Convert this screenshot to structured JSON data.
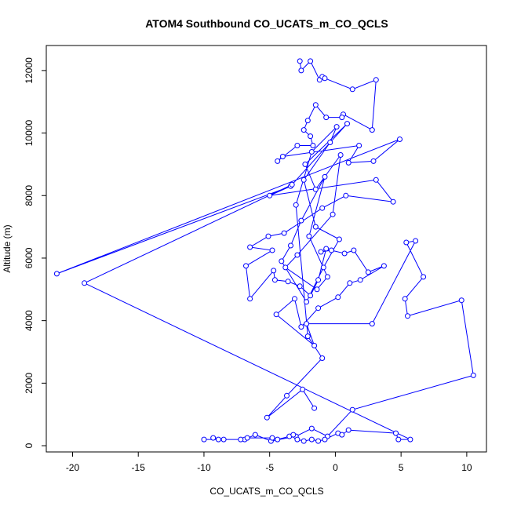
{
  "chart_data": {
    "type": "line",
    "title": "ATOM4 Southbound CO_UCATS_m_CO_QCLS",
    "xlabel": "CO_UCATS_m_CO_QCLS",
    "ylabel": "Altitude (m)",
    "xlim": [
      -22,
      11.5
    ],
    "ylim": [
      -200,
      12800
    ],
    "xticks": [
      -20,
      -15,
      -10,
      -5,
      0,
      5,
      10
    ],
    "xtick_labels": [
      "-20",
      "-15",
      "-10",
      "-5",
      "0",
      "5",
      "10"
    ],
    "yticks": [
      0,
      2000,
      4000,
      6000,
      8000,
      10000,
      12000
    ],
    "ytick_labels": [
      "0",
      "2000",
      "4000",
      "6000",
      "8000",
      "10000",
      "12000"
    ],
    "grid": false,
    "series_color": "#0000ff",
    "series": [
      {
        "markers": "open-circle",
        "points": [
          [
            -2.7,
            12300
          ],
          [
            -2.6,
            12000
          ],
          [
            -1.9,
            12300
          ],
          [
            -1.2,
            11700
          ],
          [
            -1.0,
            11800
          ],
          [
            -0.8,
            11750
          ],
          [
            1.3,
            11400
          ],
          [
            3.1,
            11700
          ],
          [
            2.8,
            10100
          ],
          [
            0.6,
            10600
          ],
          [
            0.5,
            10500
          ],
          [
            -0.7,
            10500
          ],
          [
            -1.5,
            10900
          ],
          [
            -2.1,
            10400
          ],
          [
            -2.4,
            10100
          ],
          [
            -1.9,
            9900
          ],
          [
            -1.7,
            9600
          ],
          [
            -2.9,
            9600
          ],
          [
            -4.4,
            9100
          ],
          [
            -4.0,
            9250
          ],
          [
            1.8,
            9600
          ],
          [
            1.0,
            9050
          ],
          [
            2.9,
            9100
          ],
          [
            4.9,
            9800
          ],
          [
            -21.2,
            5500
          ],
          [
            -3.4,
            8300
          ],
          [
            -5.0,
            8000
          ],
          [
            3.1,
            8500
          ],
          [
            4.4,
            7800
          ],
          [
            0.8,
            8000
          ],
          [
            -1.0,
            7600
          ],
          [
            -3.9,
            6800
          ],
          [
            -5.1,
            6700
          ],
          [
            -6.5,
            6350
          ],
          [
            -4.8,
            6250
          ],
          [
            -6.8,
            5750
          ],
          [
            -6.5,
            4700
          ],
          [
            -4.7,
            5600
          ],
          [
            -4.6,
            5300
          ],
          [
            -3.6,
            5250
          ],
          [
            -2.7,
            5100
          ],
          [
            -1.9,
            4800
          ],
          [
            -1.3,
            5300
          ],
          [
            -0.7,
            6300
          ],
          [
            -1.1,
            6200
          ],
          [
            -0.3,
            6250
          ],
          [
            0.7,
            6150
          ],
          [
            1.4,
            6250
          ],
          [
            2.5,
            5550
          ],
          [
            3.7,
            5750
          ],
          [
            1.9,
            5300
          ],
          [
            1.1,
            5200
          ],
          [
            0.2,
            4750
          ],
          [
            -1.3,
            4400
          ],
          [
            -2.6,
            3800
          ],
          [
            -3.1,
            4700
          ],
          [
            -4.5,
            4200
          ],
          [
            -1.6,
            3200
          ],
          [
            -2.2,
            3900
          ],
          [
            2.8,
            3900
          ],
          [
            6.1,
            6550
          ],
          [
            5.4,
            6500
          ],
          [
            6.7,
            5400
          ],
          [
            5.3,
            4700
          ],
          [
            5.5,
            4150
          ],
          [
            9.6,
            4650
          ],
          [
            10.5,
            2250
          ],
          [
            1.3,
            1150
          ],
          [
            -0.6,
            300
          ],
          [
            -1.8,
            550
          ],
          [
            -3.0,
            300
          ],
          [
            -4.9,
            150
          ],
          [
            -6.1,
            350
          ],
          [
            -6.9,
            200
          ],
          [
            -8.9,
            200
          ],
          [
            -9.3,
            250
          ],
          [
            -8.5,
            200
          ],
          [
            -10.0,
            200
          ],
          [
            -7.2,
            200
          ],
          [
            -6.7,
            250
          ],
          [
            -4.8,
            250
          ],
          [
            -4.4,
            200
          ],
          [
            -3.5,
            300
          ],
          [
            -3.2,
            350
          ],
          [
            -2.9,
            200
          ],
          [
            -2.4,
            150
          ],
          [
            -1.8,
            200
          ],
          [
            -1.3,
            150
          ],
          [
            -0.8,
            200
          ],
          [
            0.2,
            400
          ],
          [
            0.5,
            350
          ],
          [
            1.0,
            500
          ],
          [
            4.6,
            400
          ],
          [
            4.8,
            200
          ],
          [
            5.7,
            200
          ],
          [
            -19.1,
            5200
          ],
          [
            -3.3,
            8350
          ],
          [
            0.9,
            10300
          ],
          [
            -2.3,
            9000
          ],
          [
            -1.5,
            8200
          ],
          [
            0.4,
            9300
          ],
          [
            -0.2,
            7400
          ],
          [
            -2.9,
            6100
          ],
          [
            -3.8,
            5700
          ],
          [
            -1.4,
            5000
          ],
          [
            -0.6,
            5400
          ],
          [
            -2.0,
            6700
          ],
          [
            -0.8,
            8600
          ],
          [
            -2.6,
            7200
          ],
          [
            -3.4,
            6400
          ],
          [
            -4.1,
            5900
          ],
          [
            -2.2,
            4600
          ],
          [
            -0.9,
            5700
          ],
          [
            0.3,
            6600
          ],
          [
            -1.5,
            7000
          ],
          [
            -2.4,
            8500
          ],
          [
            -0.4,
            9700
          ],
          [
            0.1,
            10200
          ],
          [
            -1.8,
            9400
          ],
          [
            -3.0,
            7700
          ],
          [
            -2.1,
            3500
          ],
          [
            -1.0,
            2800
          ],
          [
            -3.7,
            1600
          ],
          [
            -5.2,
            900
          ],
          [
            -2.5,
            1800
          ],
          [
            -1.6,
            1200
          ]
        ]
      }
    ]
  }
}
